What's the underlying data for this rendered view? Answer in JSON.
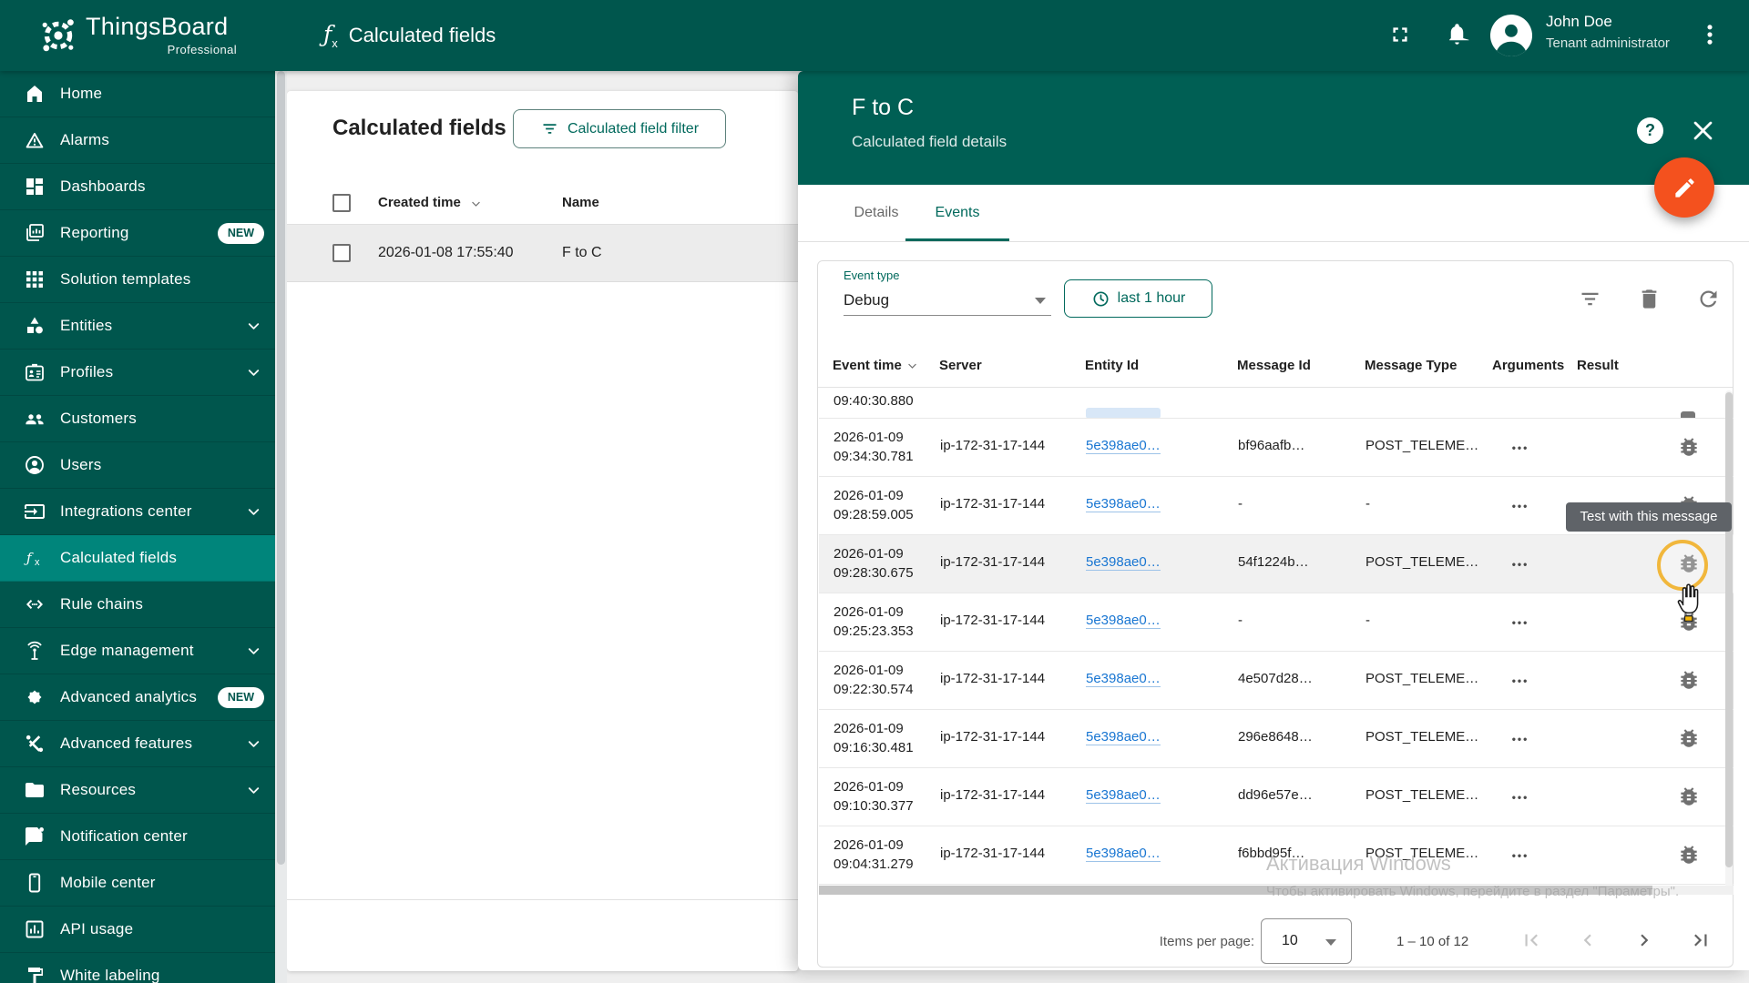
{
  "colors": {
    "appbar": "#00564d",
    "panel_header": "#005f54",
    "sidebar_selected": "#00857b",
    "accent": "#00695c",
    "fab": "#f4511e",
    "link": "#1976d2",
    "tooltip": "#5f6368",
    "highlight_ring": "#f1b73c"
  },
  "app_bar": {
    "brand": "ThingsBoard",
    "brand_sub": "Professional",
    "page_title": "Calculated fields",
    "fx_icon": "ƒ",
    "user_name": "John Doe",
    "user_role": "Tenant administrator"
  },
  "sidebar": {
    "items": [
      {
        "label": "Home",
        "icon": "home-icon"
      },
      {
        "label": "Alarms",
        "icon": "alarms-icon"
      },
      {
        "label": "Dashboards",
        "icon": "dashboards-icon"
      },
      {
        "label": "Reporting",
        "icon": "reporting-icon",
        "badge": "NEW"
      },
      {
        "label": "Solution templates",
        "icon": "solution-templates-icon"
      },
      {
        "label": "Entities",
        "icon": "entities-icon",
        "expandable": true
      },
      {
        "label": "Profiles",
        "icon": "profiles-icon",
        "expandable": true
      },
      {
        "label": "Customers",
        "icon": "customers-icon"
      },
      {
        "label": "Users",
        "icon": "users-icon"
      },
      {
        "label": "Integrations center",
        "icon": "integrations-center-icon",
        "expandable": true
      },
      {
        "label": "Calculated fields",
        "icon": "calculated-fields-icon",
        "selected": true
      },
      {
        "label": "Rule chains",
        "icon": "rule-chains-icon"
      },
      {
        "label": "Edge management",
        "icon": "edge-management-icon",
        "expandable": true
      },
      {
        "label": "Advanced analytics",
        "icon": "advanced-analytics-icon",
        "badge": "NEW"
      },
      {
        "label": "Advanced features",
        "icon": "advanced-features-icon",
        "expandable": true
      },
      {
        "label": "Resources",
        "icon": "resources-icon",
        "expandable": true
      },
      {
        "label": "Notification center",
        "icon": "notification-center-icon"
      },
      {
        "label": "Mobile center",
        "icon": "mobile-center-icon"
      },
      {
        "label": "API usage",
        "icon": "api-usage-icon"
      },
      {
        "label": "White labeling",
        "icon": "white-labeling-icon"
      }
    ]
  },
  "list_card": {
    "title": "Calculated fields",
    "filter_button": "Calculated field filter",
    "columns": {
      "created": "Created time",
      "name": "Name"
    },
    "rows": [
      {
        "created_time": "2026-01-08 17:55:40",
        "name": "F to C"
      }
    ]
  },
  "panel": {
    "title": "F to C",
    "subtitle": "Calculated field details",
    "tabs": {
      "details": "Details",
      "events": "Events"
    },
    "event_type_label": "Event type",
    "event_type_value": "Debug",
    "time_range_button": "last 1 hour",
    "table": {
      "columns": [
        "Event time",
        "Server",
        "Entity Id",
        "Message Id",
        "Message Type",
        "Arguments",
        "Result"
      ],
      "partial_row_time": "09:40:30.880",
      "rows": [
        {
          "date": "2026-01-09",
          "time": "09:34:30.781",
          "server": "ip-172-31-17-144",
          "entity": "5e398ae0…",
          "message_id": "bf96aafb…",
          "message_type": "POST_TELEME…"
        },
        {
          "date": "2026-01-09",
          "time": "09:28:59.005",
          "server": "ip-172-31-17-144",
          "entity": "5e398ae0…",
          "message_id": "-",
          "message_type": "-"
        },
        {
          "date": "2026-01-09",
          "time": "09:28:30.675",
          "server": "ip-172-31-17-144",
          "entity": "5e398ae0…",
          "message_id": "54f1224b…",
          "message_type": "POST_TELEME…",
          "highlighted": true
        },
        {
          "date": "2026-01-09",
          "time": "09:25:23.353",
          "server": "ip-172-31-17-144",
          "entity": "5e398ae0…",
          "message_id": "-",
          "message_type": "-"
        },
        {
          "date": "2026-01-09",
          "time": "09:22:30.574",
          "server": "ip-172-31-17-144",
          "entity": "5e398ae0…",
          "message_id": "4e507d28…",
          "message_type": "POST_TELEME…"
        },
        {
          "date": "2026-01-09",
          "time": "09:16:30.481",
          "server": "ip-172-31-17-144",
          "entity": "5e398ae0…",
          "message_id": "296e8648…",
          "message_type": "POST_TELEME…"
        },
        {
          "date": "2026-01-09",
          "time": "09:10:30.377",
          "server": "ip-172-31-17-144",
          "entity": "5e398ae0…",
          "message_id": "dd96e57e…",
          "message_type": "POST_TELEME…"
        },
        {
          "date": "2026-01-09",
          "time": "09:04:31.279",
          "server": "ip-172-31-17-144",
          "entity": "5e398ae0…",
          "message_id": "f6bbd95f…",
          "message_type": "POST_TELEME…"
        }
      ],
      "more_dots": "•••"
    },
    "tooltip": "Test with this message",
    "pagination": {
      "items_per_page_label": "Items per page:",
      "items_per_page_value": "10",
      "range_label": "1 – 10 of 12"
    }
  },
  "watermark": {
    "line1": "Активация Windows",
    "line2": "Чтобы активировать Windows, перейдите в раздел \"Параметры\"."
  }
}
